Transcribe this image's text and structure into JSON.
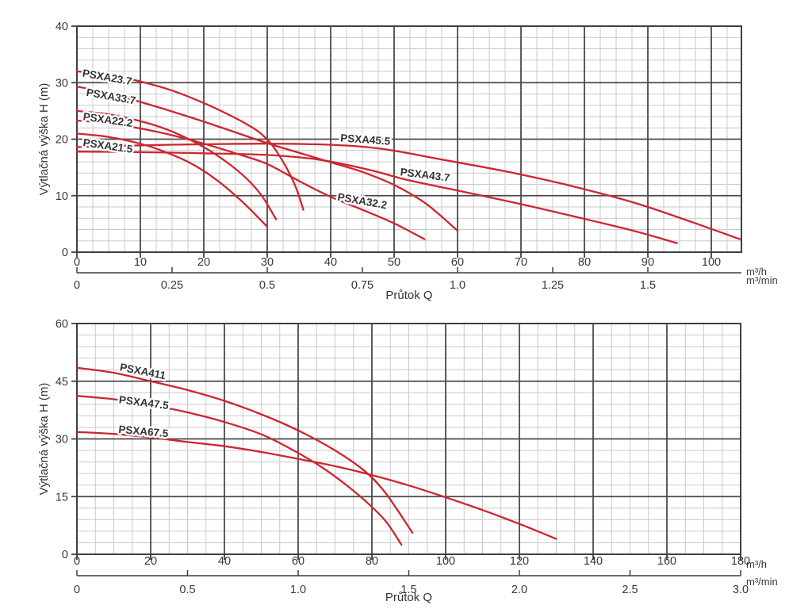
{
  "figure": {
    "background": "#ffffff",
    "colors": {
      "curve": "#cd2630",
      "major_grid": "#4a4a4a",
      "minor_grid": "#c9c9c9",
      "border": "#3f3f3f",
      "text": "#383838"
    }
  },
  "chart_data": [
    {
      "type": "line",
      "title": "",
      "ylabel": "Výtlačná výška H (m)",
      "xlabel": "Průtok Q",
      "units": {
        "primary": "m³/h",
        "secondary": "m³/min"
      },
      "xlim": [
        0,
        104.75
      ],
      "ylim": [
        0,
        40
      ],
      "grid": "on",
      "x_ticks": [
        0,
        10,
        20,
        30,
        40,
        50,
        60,
        70,
        80,
        90,
        100
      ],
      "y_ticks": [
        0,
        10,
        20,
        30,
        40
      ],
      "x_minor_step": 2.5,
      "y_minor_step": 2,
      "x2_ticks": [
        {
          "x": 0,
          "label": "0"
        },
        {
          "x": 15,
          "label": "0.25"
        },
        {
          "x": 30,
          "label": "0.5"
        },
        {
          "x": 45,
          "label": "0.75"
        },
        {
          "x": 60,
          "label": "1.0"
        },
        {
          "x": 75,
          "label": "1.25"
        },
        {
          "x": 90,
          "label": "1.5"
        }
      ],
      "series": [
        {
          "name": "PSXA23.7",
          "label": {
            "x": 0.8,
            "y": 31.1,
            "rot": 10
          },
          "points": [
            [
              0,
              32
            ],
            [
              5,
              31.4
            ],
            [
              10,
              30.2
            ],
            [
              15,
              28.6
            ],
            [
              20,
              26.4
            ],
            [
              24,
              24.3
            ],
            [
              27,
              22.5
            ],
            [
              29,
              21
            ],
            [
              31,
              18.6
            ],
            [
              33,
              15
            ],
            [
              34.5,
              11.5
            ],
            [
              35.7,
              7.5
            ]
          ]
        },
        {
          "name": "PSXA33.7",
          "label": {
            "x": 1.4,
            "y": 27.7,
            "rot": 10
          },
          "points": [
            [
              0,
              29.3
            ],
            [
              5,
              28.2
            ],
            [
              10,
              26.6
            ],
            [
              15,
              24.9
            ],
            [
              20,
              23.1
            ],
            [
              25,
              21.2
            ],
            [
              30,
              19.3
            ],
            [
              35,
              17.6
            ],
            [
              40,
              15.9
            ],
            [
              45,
              14.2
            ],
            [
              50,
              11.9
            ],
            [
              55,
              8.6
            ],
            [
              60,
              3.8
            ]
          ]
        },
        {
          "name": "PSXA22.2",
          "label": {
            "x": 0.9,
            "y": 23.4,
            "rot": 8
          },
          "points": [
            [
              0,
              25
            ],
            [
              5,
              24.4
            ],
            [
              10,
              23.2
            ],
            [
              14,
              21.8
            ],
            [
              18,
              19.8
            ],
            [
              22,
              17.2
            ],
            [
              26,
              13.8
            ],
            [
              29,
              10.2
            ],
            [
              31.4,
              5.8
            ]
          ]
        },
        {
          "name": "PSXA21.5",
          "label": {
            "x": 0.9,
            "y": 18.8,
            "rot": 8
          },
          "points": [
            [
              0,
              21
            ],
            [
              5,
              20.4
            ],
            [
              10,
              19.2
            ],
            [
              14,
              17.7
            ],
            [
              18,
              15.7
            ],
            [
              22,
              12.8
            ],
            [
              26,
              9
            ],
            [
              30,
              4.5
            ]
          ]
        },
        {
          "name": "PSXA32.2",
          "label": {
            "x": 41.0,
            "y": 9.2,
            "rot": 10
          },
          "points": [
            [
              0,
              23.3
            ],
            [
              5,
              22.8
            ],
            [
              10,
              21.9
            ],
            [
              15,
              20.7
            ],
            [
              20,
              19.2
            ],
            [
              25,
              17.5
            ],
            [
              30,
              15.6
            ],
            [
              35,
              12.6
            ],
            [
              40,
              9.8
            ],
            [
              45,
              7.5
            ],
            [
              50,
              5.1
            ],
            [
              54.8,
              2.3
            ]
          ]
        },
        {
          "name": "PSXA45.5",
          "label": {
            "x": 41.5,
            "y": 19.6,
            "rot": 4
          },
          "points": [
            [
              0,
              18.6
            ],
            [
              10,
              18.9
            ],
            [
              20,
              19.1
            ],
            [
              30,
              19.2
            ],
            [
              40,
              19.0
            ],
            [
              48,
              18.3
            ],
            [
              58,
              16.3
            ],
            [
              68,
              14.2
            ],
            [
              78,
              11.7
            ],
            [
              88,
              8.7
            ],
            [
              97,
              5.3
            ],
            [
              104.5,
              2.3
            ]
          ]
        },
        {
          "name": "PSXA43.7",
          "label": {
            "x": 50.9,
            "y": 13.6,
            "rot": 7
          },
          "points": [
            [
              0,
              17.8
            ],
            [
              10,
              17.7
            ],
            [
              20,
              17.5
            ],
            [
              30,
              17.2
            ],
            [
              38,
              16.4
            ],
            [
              46,
              14.6
            ],
            [
              52,
              12.8
            ],
            [
              60,
              10.9
            ],
            [
              70,
              8.5
            ],
            [
              80,
              5.9
            ],
            [
              88,
              3.7
            ],
            [
              94.6,
              1.6
            ]
          ]
        }
      ]
    },
    {
      "type": "line",
      "title": "",
      "ylabel": "Výtlačná výška H (m)",
      "xlabel": "Průtok Q",
      "units": {
        "primary": "m³/h",
        "secondary": "m³/min"
      },
      "xlim": [
        0,
        180
      ],
      "ylim": [
        0,
        60
      ],
      "grid": "on",
      "x_ticks": [
        0,
        20,
        40,
        60,
        80,
        100,
        120,
        140,
        160,
        180
      ],
      "y_ticks": [
        0,
        15,
        30,
        45,
        60
      ],
      "x_minor_step": 5,
      "y_minor_step": 3,
      "x2_ticks": [
        {
          "x": 0,
          "label": "0"
        },
        {
          "x": 30,
          "label": "0.5"
        },
        {
          "x": 60,
          "label": "1.0"
        },
        {
          "x": 90,
          "label": "1.5"
        },
        {
          "x": 120,
          "label": "2.0"
        },
        {
          "x": 150,
          "label": "2.5"
        },
        {
          "x": 180,
          "label": "3.0"
        }
      ],
      "series": [
        {
          "name": "PSXA411",
          "label": {
            "x": 11.5,
            "y": 47.8,
            "rot": 11
          },
          "points": [
            [
              0,
              48.5
            ],
            [
              10,
              47.2
            ],
            [
              20,
              45
            ],
            [
              30,
              42.7
            ],
            [
              40,
              39.9
            ],
            [
              50,
              36.4
            ],
            [
              60,
              32.2
            ],
            [
              70,
              27
            ],
            [
              78,
              21.7
            ],
            [
              83,
              16.8
            ],
            [
              87,
              11.4
            ],
            [
              91,
              5.6
            ]
          ]
        },
        {
          "name": "PSXA47.5",
          "label": {
            "x": 11.3,
            "y": 39.3,
            "rot": 7
          },
          "points": [
            [
              0,
              41.2
            ],
            [
              10,
              40.3
            ],
            [
              20,
              38.8
            ],
            [
              30,
              36.9
            ],
            [
              40,
              34.4
            ],
            [
              50,
              31.2
            ],
            [
              58,
              27.4
            ],
            [
              66,
              22.9
            ],
            [
              74,
              17.3
            ],
            [
              80,
              12.3
            ],
            [
              84,
              8.3
            ],
            [
              88,
              2.5
            ]
          ]
        },
        {
          "name": "PSXA67.5",
          "label": {
            "x": 11.2,
            "y": 31.6,
            "rot": 5
          },
          "points": [
            [
              0,
              31.8
            ],
            [
              10,
              31.3
            ],
            [
              20,
              30.4
            ],
            [
              30,
              29.2
            ],
            [
              40,
              28.1
            ],
            [
              50,
              26.6
            ],
            [
              60,
              24.8
            ],
            [
              70,
              22.9
            ],
            [
              80,
              20.6
            ],
            [
              90,
              17.9
            ],
            [
              100,
              14.8
            ],
            [
              110,
              11.5
            ],
            [
              120,
              7.9
            ],
            [
              130,
              4.0
            ]
          ]
        }
      ]
    }
  ]
}
